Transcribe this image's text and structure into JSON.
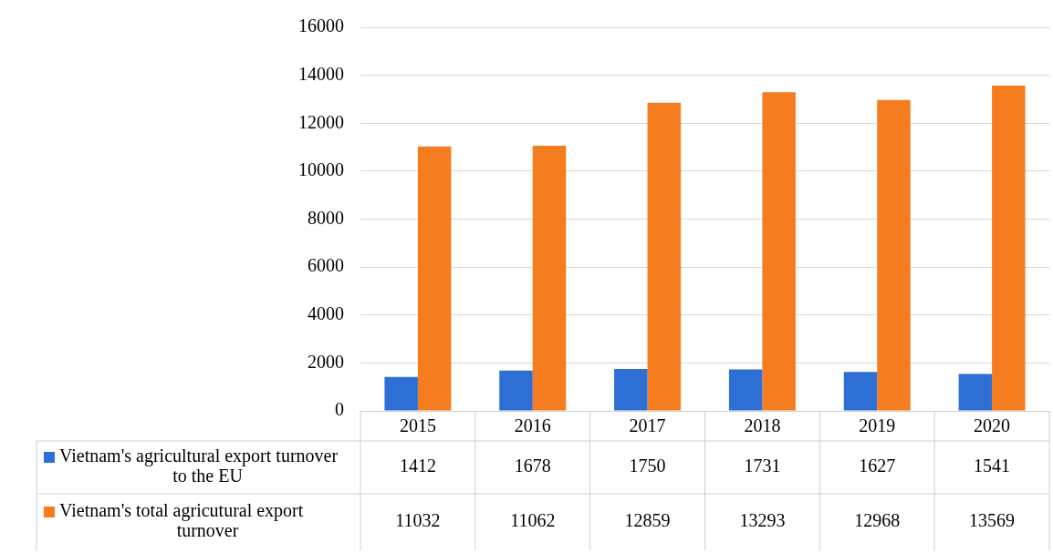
{
  "chart_data": {
    "type": "bar",
    "categories": [
      "2015",
      "2016",
      "2017",
      "2018",
      "2019",
      "2020"
    ],
    "series": [
      {
        "name": "Vietnam's agricultural export turnover to the EU",
        "color": "#2e6fd6",
        "values": [
          1412,
          1678,
          1750,
          1731,
          1627,
          1541
        ]
      },
      {
        "name": "Vietnam's total agricutural export turnover",
        "color": "#f57d1f",
        "values": [
          11032,
          11062,
          12859,
          13293,
          12968,
          13569
        ]
      }
    ],
    "ylim": [
      0,
      16000
    ],
    "yticks": [
      0,
      2000,
      4000,
      6000,
      8000,
      10000,
      12000,
      14000,
      16000
    ],
    "grid": "y",
    "legend": "bottom",
    "data_labels": true
  }
}
